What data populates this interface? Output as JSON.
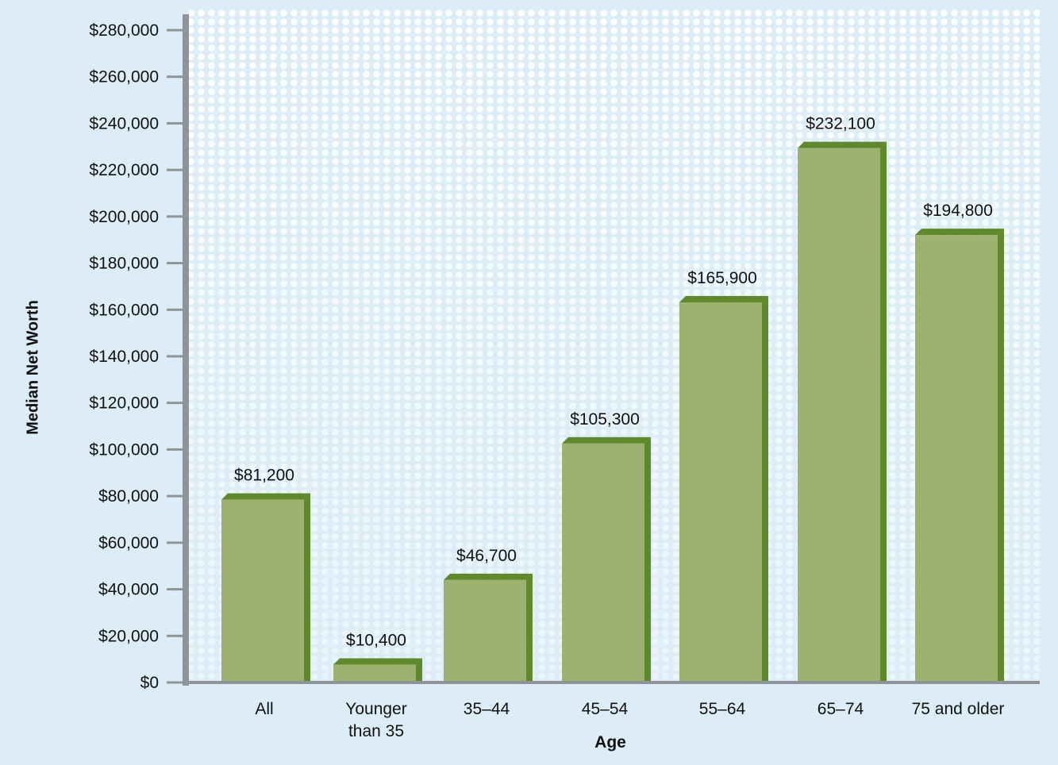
{
  "chart_data": {
    "type": "bar",
    "title": "",
    "xlabel": "Age",
    "ylabel": "Median Net Worth",
    "categories": [
      "All",
      "Younger than 35",
      "35–44",
      "45–54",
      "55–64",
      "65–74",
      "75 and older"
    ],
    "category_lines": [
      [
        "All"
      ],
      [
        "Younger",
        "than 35"
      ],
      [
        "35–44"
      ],
      [
        "45–54"
      ],
      [
        "55–64"
      ],
      [
        "65–74"
      ],
      [
        "75 and older"
      ]
    ],
    "values": [
      81200,
      10400,
      46700,
      105300,
      165900,
      232100,
      194800
    ],
    "value_labels": [
      "$81,200",
      "$10,400",
      "$46,700",
      "$105,300",
      "$165,900",
      "$232,100",
      "$194,800"
    ],
    "yticks": [
      0,
      20000,
      40000,
      60000,
      80000,
      100000,
      120000,
      140000,
      160000,
      180000,
      200000,
      220000,
      240000,
      260000,
      280000
    ],
    "ytick_labels": [
      "$0",
      "$20,000",
      "$40,000",
      "$60,000",
      "$80,000",
      "$100,000",
      "$120,000",
      "$140,000",
      "$160,000",
      "$180,000",
      "$200,000",
      "$220,000",
      "$240,000",
      "$260,000",
      "$280,000"
    ],
    "ylim": [
      0,
      280000
    ],
    "grid": false,
    "colors": {
      "background": "#dcedf7",
      "dots": "#ffffff",
      "bar_face": "#9eb270",
      "bar_side": "#5e8a2c",
      "axis": "#8f9498",
      "text": "#111111"
    }
  }
}
